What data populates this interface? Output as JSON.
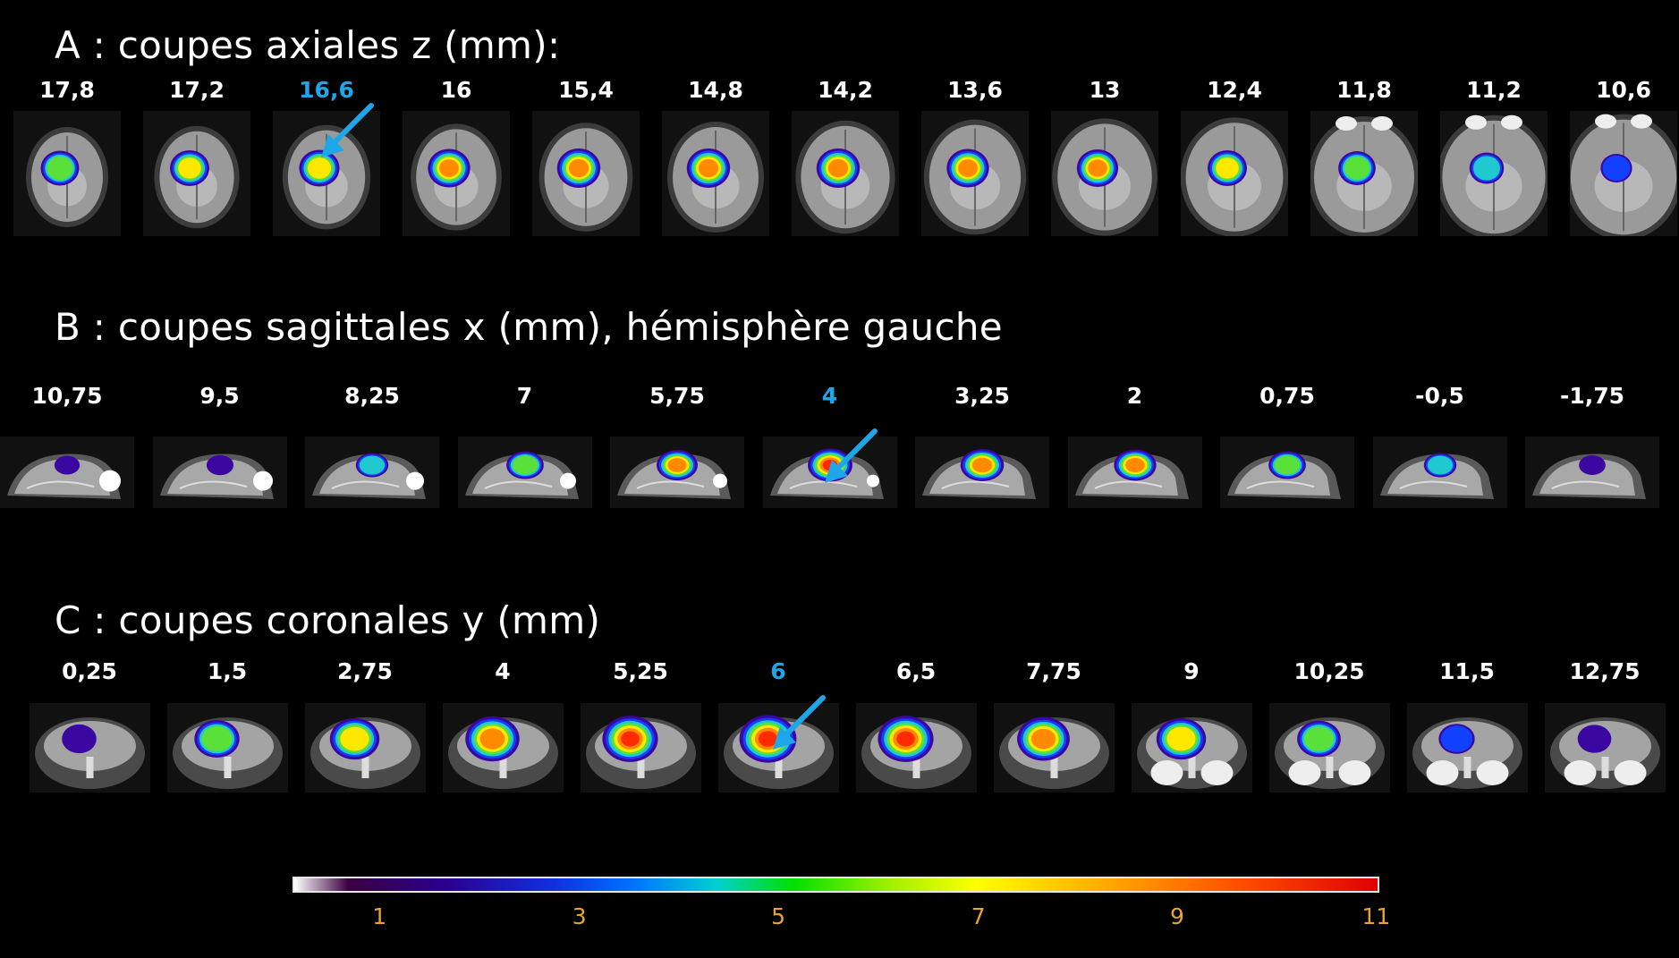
{
  "panels": [
    {
      "title": "A : coupes axiales z (mm):",
      "view": "axial",
      "labels": [
        "17,8",
        "17,2",
        "16,6",
        "16",
        "15,4",
        "14,8",
        "14,2",
        "13,6",
        "13",
        "12,4",
        "11,8",
        "11,2",
        "10,6"
      ],
      "highlight_index": 2,
      "activation_level": [
        0.55,
        0.6,
        0.65,
        0.75,
        0.8,
        0.8,
        0.8,
        0.75,
        0.7,
        0.6,
        0.5,
        0.35,
        0.2
      ]
    },
    {
      "title": "B : coupes sagittales x (mm), hémisphère gauche",
      "view": "sagittal",
      "labels": [
        "10,75",
        "9,5",
        "8,25",
        "7",
        "5,75",
        "4",
        "3,25",
        "2",
        "0,75",
        "-0,5",
        "-1,75"
      ],
      "highlight_index": 5,
      "activation_level": [
        0.05,
        0.12,
        0.35,
        0.55,
        0.7,
        0.85,
        0.8,
        0.75,
        0.55,
        0.35,
        0.1
      ]
    },
    {
      "title": "C : coupes coronales y (mm)",
      "view": "coronal",
      "labels": [
        "0,25",
        "1,5",
        "2,75",
        "4",
        "5,25",
        "6",
        "6,5",
        "7,75",
        "9",
        "10,25",
        "11,5",
        "12,75"
      ],
      "highlight_index": 5,
      "activation_level": [
        0.15,
        0.5,
        0.65,
        0.8,
        0.85,
        0.9,
        0.85,
        0.75,
        0.65,
        0.45,
        0.2,
        0.12
      ]
    }
  ],
  "colorbar": {
    "ticks": [
      "1",
      "3",
      "5",
      "7",
      "9",
      "11"
    ],
    "tick_color": "#e8a628",
    "highlight_color": "#1ea7e8"
  }
}
